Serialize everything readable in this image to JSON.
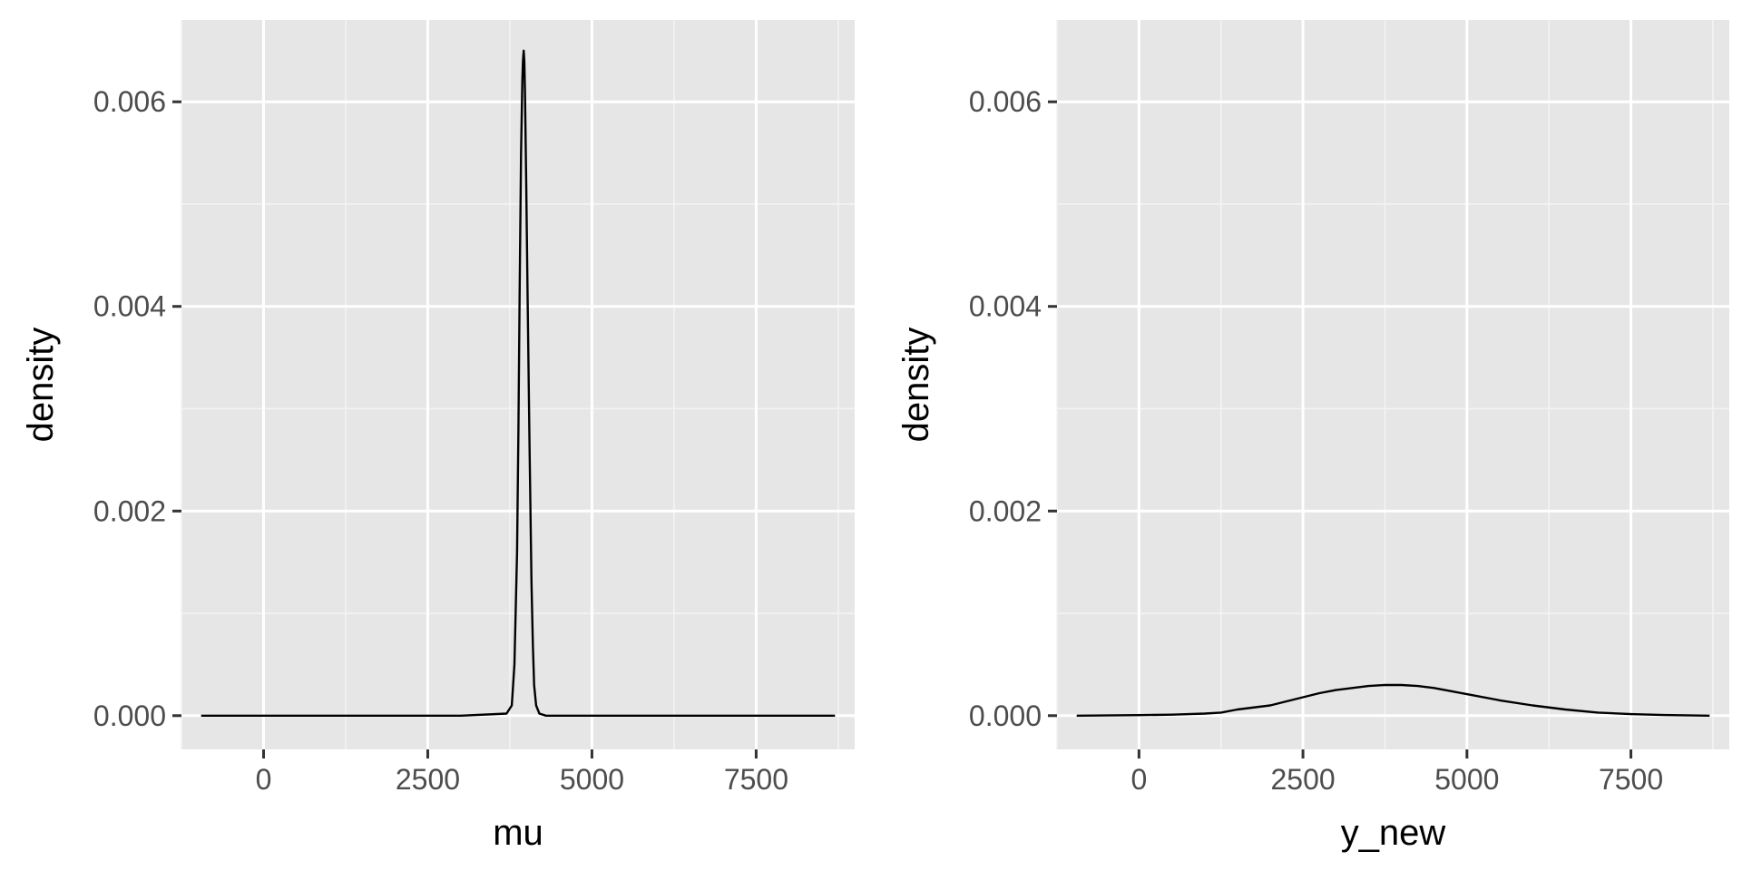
{
  "chart_data": [
    {
      "type": "line",
      "title": "",
      "xlabel": "mu",
      "ylabel": "density",
      "xlim": [
        -1250,
        9000
      ],
      "ylim": [
        -0.00033,
        0.0068
      ],
      "x_ticks": [
        0,
        2500,
        5000,
        7500
      ],
      "x_tick_labels": [
        "0",
        "2500",
        "5000",
        "7500"
      ],
      "y_ticks": [
        0,
        0.002,
        0.004,
        0.006
      ],
      "y_tick_labels": [
        "0.000",
        "0.002",
        "0.004",
        "0.006"
      ],
      "grid": true,
      "series": [
        {
          "x": [
            -950,
            3000,
            3700,
            3780,
            3820,
            3860,
            3880,
            3900,
            3920,
            3940,
            3950,
            3960,
            3970,
            3980,
            4000,
            4020,
            4050,
            4080,
            4100,
            4120,
            4150,
            4200,
            4300,
            5000,
            8700
          ],
          "y": [
            0,
            0,
            2e-05,
            0.0001,
            0.0005,
            0.0016,
            0.0028,
            0.0042,
            0.0055,
            0.0062,
            0.0064,
            0.0065,
            0.0064,
            0.0061,
            0.0052,
            0.0041,
            0.0026,
            0.0013,
            0.0007,
            0.0003,
            0.0001,
            2e-05,
            0,
            0,
            0
          ]
        }
      ]
    },
    {
      "type": "line",
      "title": "",
      "xlabel": "y_new",
      "ylabel": "density",
      "xlim": [
        -1250,
        9000
      ],
      "ylim": [
        -0.00033,
        0.0068
      ],
      "x_ticks": [
        0,
        2500,
        5000,
        7500
      ],
      "x_tick_labels": [
        "0",
        "2500",
        "5000",
        "7500"
      ],
      "y_ticks": [
        0,
        0.002,
        0.004,
        0.006
      ],
      "y_tick_labels": [
        "0.000",
        "0.002",
        "0.004",
        "0.006"
      ],
      "grid": true,
      "series": [
        {
          "x": [
            -950,
            0,
            500,
            1000,
            1250,
            1500,
            2000,
            2500,
            2750,
            3000,
            3250,
            3500,
            3750,
            4000,
            4250,
            4500,
            4750,
            5000,
            5500,
            6000,
            6500,
            7000,
            7500,
            8000,
            8700
          ],
          "y": [
            0,
            5e-06,
            1e-05,
            2e-05,
            3e-05,
            6e-05,
            0.0001,
            0.00018,
            0.00022,
            0.00025,
            0.00027,
            0.00029,
            0.0003,
            0.0003,
            0.00029,
            0.00027,
            0.00024,
            0.00021,
            0.00015,
            0.0001,
            6e-05,
            3e-05,
            1.5e-05,
            6e-06,
            0
          ]
        }
      ]
    }
  ]
}
